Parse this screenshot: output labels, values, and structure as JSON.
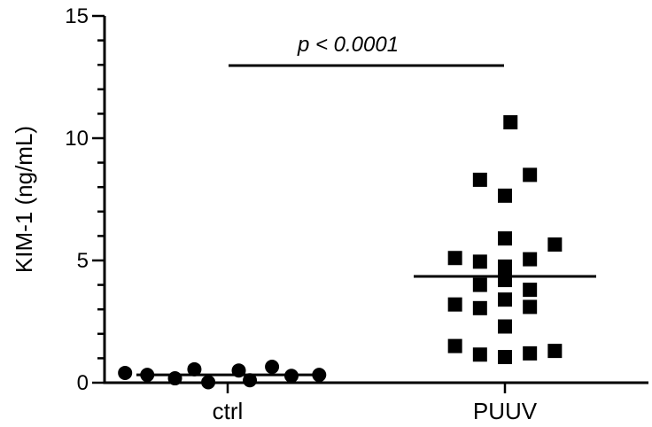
{
  "chart_data": {
    "type": "scatter",
    "title": "",
    "xlabel": "",
    "ylabel": "KIM-1 (ng/mL)",
    "ylim": [
      0,
      15
    ],
    "yticks": [
      0,
      5,
      10,
      15
    ],
    "grid": false,
    "categories": [
      "ctrl",
      "PUUV"
    ],
    "annotation": "p < 0.0001",
    "colors": {
      "points": "#000000",
      "axes": "#000000"
    },
    "groups": [
      {
        "category": "ctrl",
        "marker": "circle",
        "mean": 0.32,
        "points": [
          {
            "offset": -0.37,
            "y": 0.4
          },
          {
            "offset": -0.29,
            "y": 0.32
          },
          {
            "offset": -0.19,
            "y": 0.18
          },
          {
            "offset": -0.12,
            "y": 0.55
          },
          {
            "offset": -0.07,
            "y": 0.02
          },
          {
            "offset": 0.04,
            "y": 0.5
          },
          {
            "offset": 0.08,
            "y": 0.1
          },
          {
            "offset": 0.16,
            "y": 0.65
          },
          {
            "offset": 0.23,
            "y": 0.28
          },
          {
            "offset": 0.33,
            "y": 0.32
          }
        ]
      },
      {
        "category": "PUUV",
        "marker": "square",
        "mean": 4.35,
        "points": [
          {
            "offset": 0.02,
            "y": 10.65
          },
          {
            "offset": -0.09,
            "y": 8.3
          },
          {
            "offset": 0.09,
            "y": 8.5
          },
          {
            "offset": 0.0,
            "y": 7.65
          },
          {
            "offset": 0.0,
            "y": 5.9
          },
          {
            "offset": -0.18,
            "y": 5.1
          },
          {
            "offset": -0.09,
            "y": 4.95
          },
          {
            "offset": 0.0,
            "y": 4.75
          },
          {
            "offset": 0.09,
            "y": 5.05
          },
          {
            "offset": 0.18,
            "y": 5.65
          },
          {
            "offset": -0.09,
            "y": 4.0
          },
          {
            "offset": 0.0,
            "y": 4.2
          },
          {
            "offset": 0.09,
            "y": 3.8
          },
          {
            "offset": -0.18,
            "y": 3.2
          },
          {
            "offset": -0.09,
            "y": 3.05
          },
          {
            "offset": 0.0,
            "y": 3.4
          },
          {
            "offset": 0.09,
            "y": 3.1
          },
          {
            "offset": 0.0,
            "y": 2.3
          },
          {
            "offset": -0.18,
            "y": 1.5
          },
          {
            "offset": -0.09,
            "y": 1.15
          },
          {
            "offset": 0.0,
            "y": 1.05
          },
          {
            "offset": 0.09,
            "y": 1.2
          },
          {
            "offset": 0.18,
            "y": 1.3
          }
        ]
      }
    ]
  }
}
